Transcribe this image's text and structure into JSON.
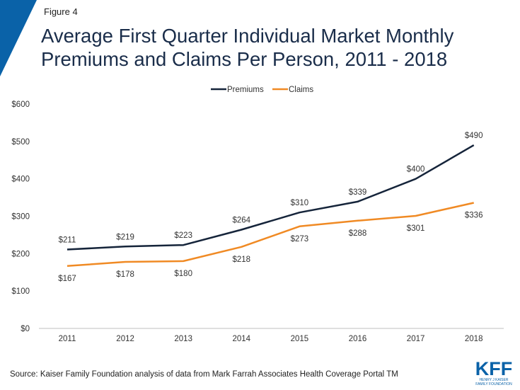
{
  "figure_label": "Figure 4",
  "title": "Average First Quarter Individual Market Monthly Premiums and Claims Per Person, 2011 - 2018",
  "source": "Source: Kaiser Family Foundation analysis of data from Mark Farrah Associates Health Coverage Portal TM",
  "logo": {
    "mark": "KFF",
    "sub": "HENRY J KAISER\nFAMILY FOUNDATION"
  },
  "colors": {
    "accent": "#0a62a8",
    "premiums": "#15243a",
    "claims": "#f08a24"
  },
  "chart_data": {
    "type": "line",
    "title": "Average First Quarter Individual Market Monthly Premiums and Claims Per Person, 2011 - 2018",
    "categories": [
      "2011",
      "2012",
      "2013",
      "2014",
      "2015",
      "2016",
      "2017",
      "2018"
    ],
    "series": [
      {
        "name": "Premiums",
        "color": "#15243a",
        "values": [
          211,
          219,
          223,
          264,
          310,
          339,
          400,
          490
        ],
        "labels": [
          "$211",
          "$219",
          "$223",
          "$264",
          "$310",
          "$339",
          "$400",
          "$490"
        ]
      },
      {
        "name": "Claims",
        "color": "#f08a24",
        "values": [
          167,
          178,
          180,
          218,
          273,
          288,
          301,
          336
        ],
        "labels": [
          "$167",
          "$178",
          "$180",
          "$218",
          "$273",
          "$288",
          "$301",
          "$336"
        ]
      }
    ],
    "ylim": [
      0,
      600
    ],
    "yticks": [
      0,
      100,
      200,
      300,
      400,
      500,
      600
    ],
    "ytick_labels": [
      "$0",
      "$100",
      "$200",
      "$300",
      "$400",
      "$500",
      "$600"
    ],
    "legend_position": "top-center",
    "grid": false
  }
}
